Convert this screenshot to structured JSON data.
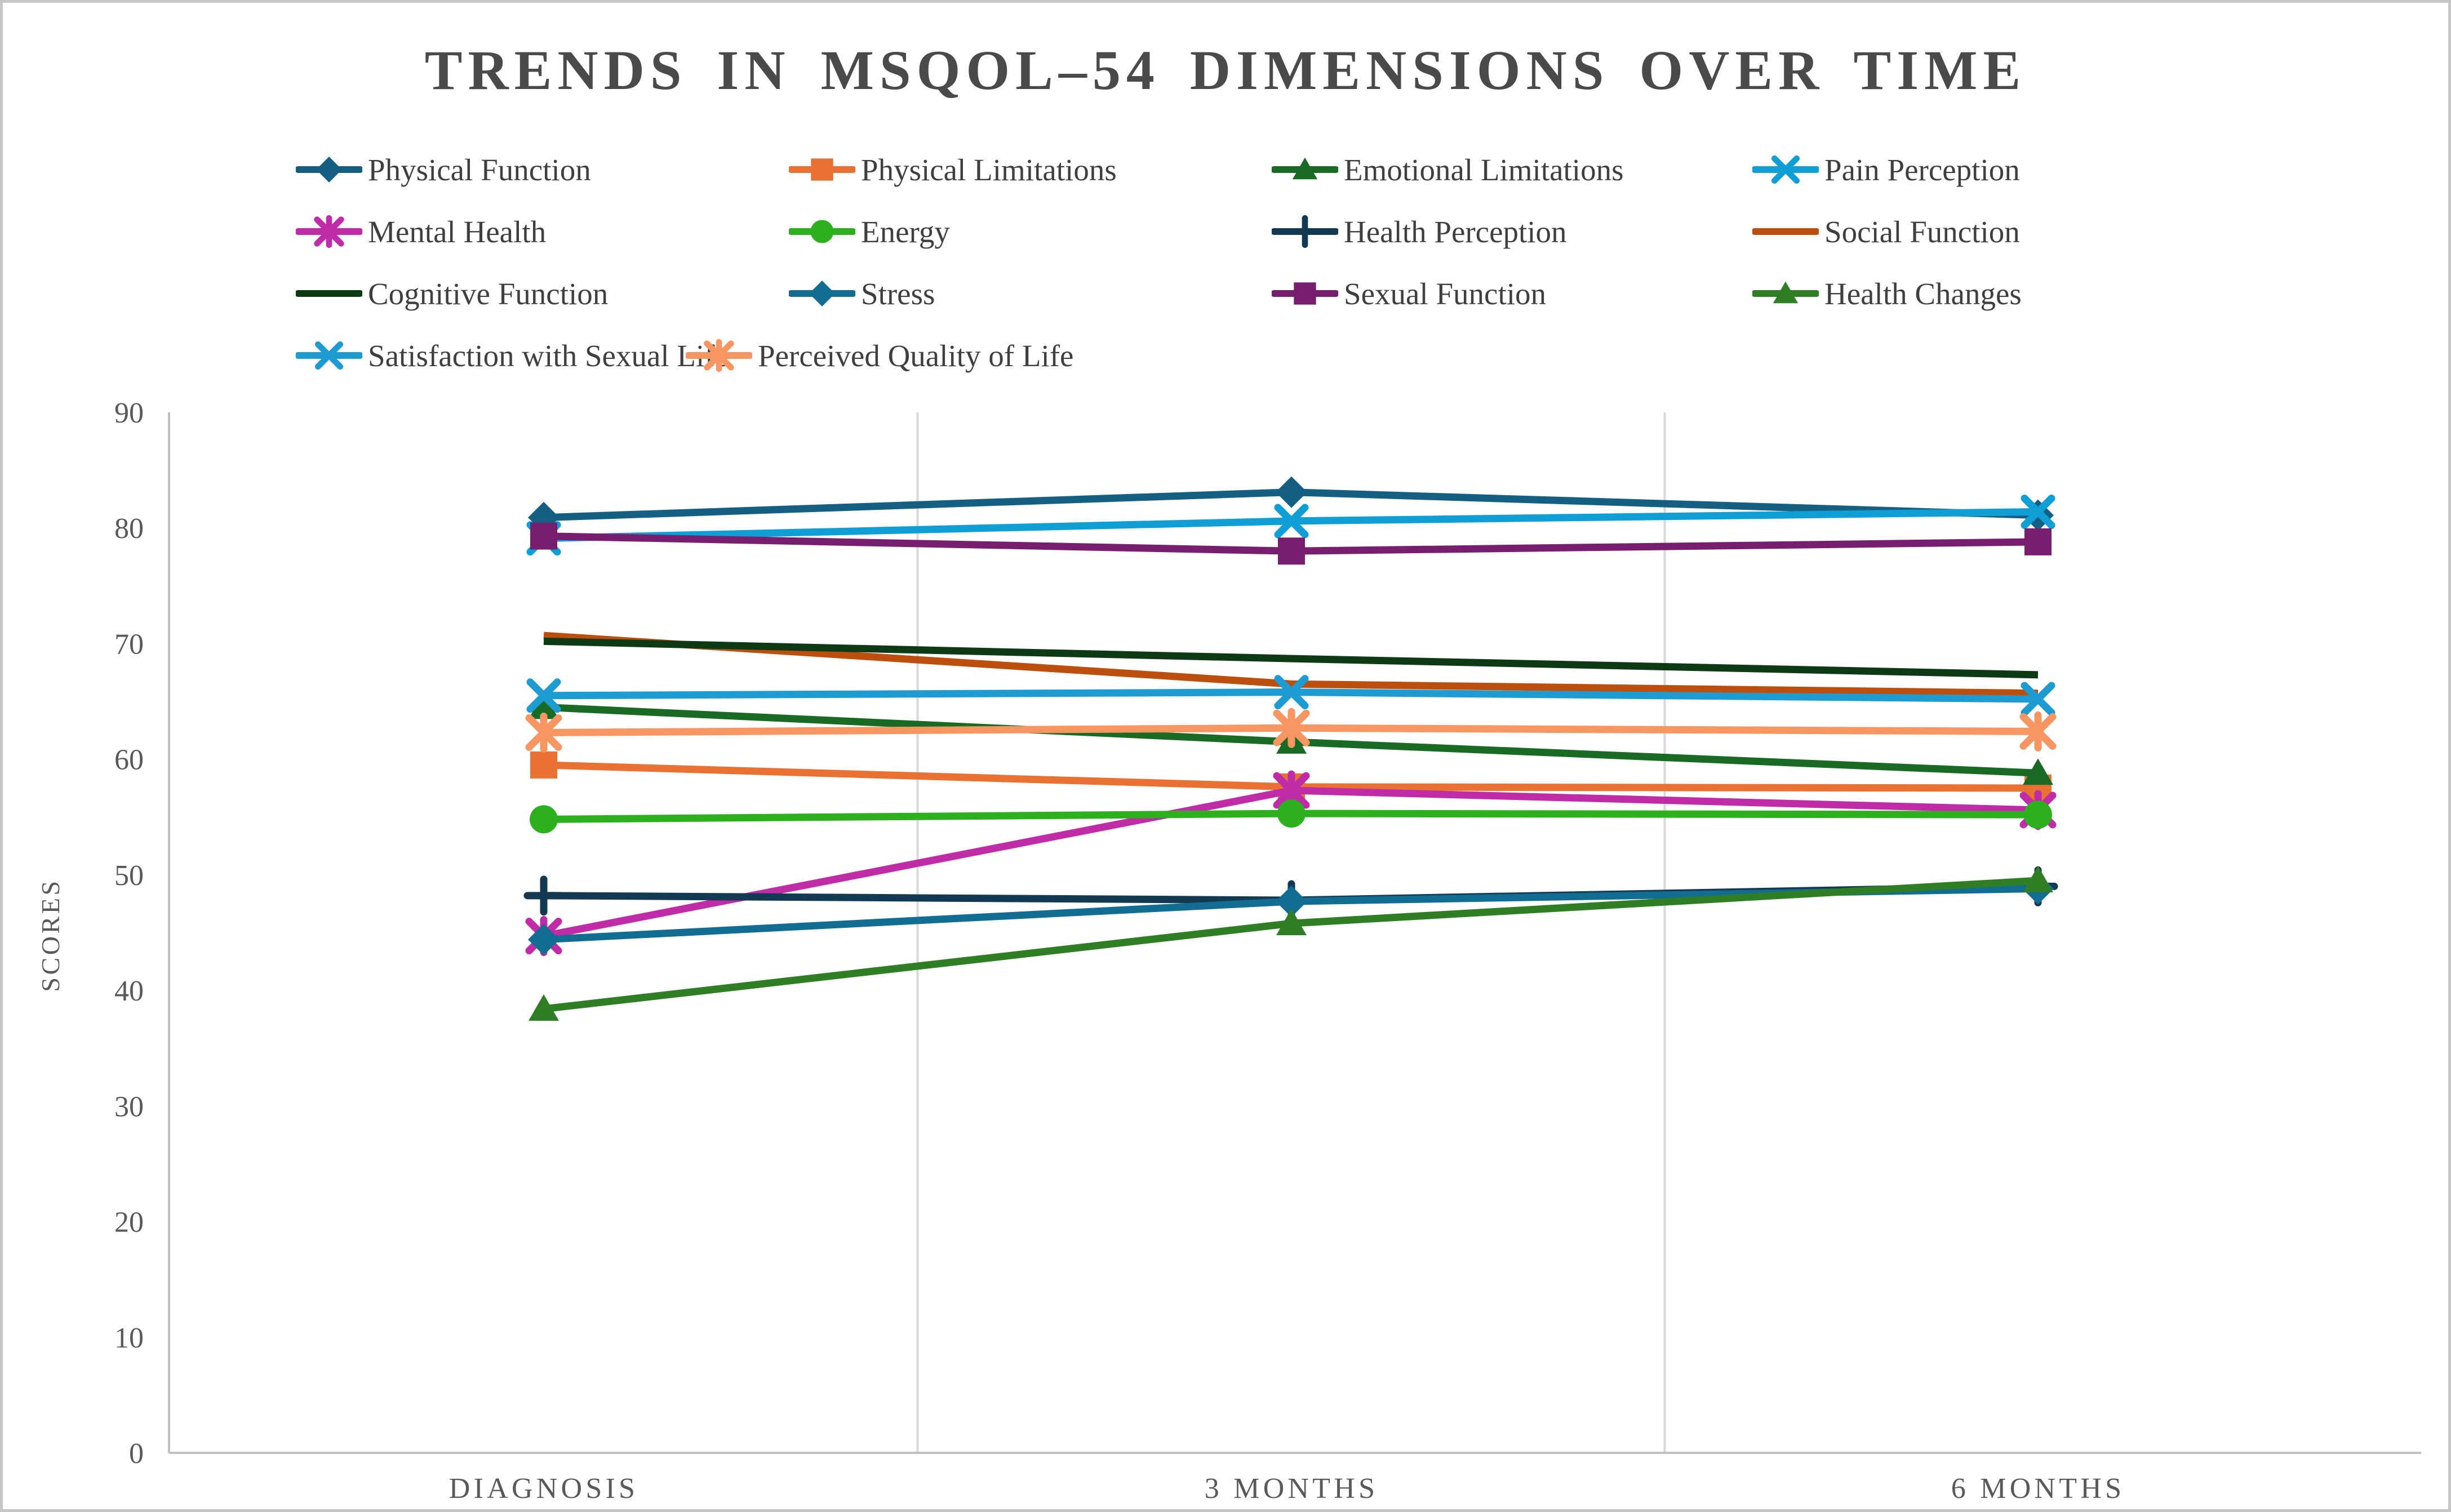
{
  "title": "TRENDS IN MSQOL–54 DIMENSIONS OVER TIME",
  "chart_data": {
    "type": "line",
    "categories": [
      "DIAGNOSIS",
      "3 MONTHS",
      "6 MONTHS"
    ],
    "ylabel": "SCORES",
    "ylim": [
      0,
      90
    ],
    "ytick_step": 10,
    "yticks": [
      0,
      10,
      20,
      30,
      40,
      50,
      60,
      70,
      80,
      90
    ],
    "grid": "vertical-category-separators",
    "legend_position": "top",
    "series": [
      {
        "name": "Physical Function",
        "color": "#156082",
        "marker": "diamond",
        "values": [
          80.9,
          83.1,
          81.1
        ]
      },
      {
        "name": "Physical Limitations",
        "color": "#E97132",
        "marker": "square",
        "values": [
          59.5,
          57.6,
          57.5
        ]
      },
      {
        "name": "Emotional Limitations",
        "color": "#196B24",
        "marker": "triangle",
        "values": [
          64.5,
          61.5,
          58.8
        ]
      },
      {
        "name": "Pain Perception",
        "color": "#0F9ED5",
        "marker": "x",
        "values": [
          79.1,
          80.6,
          81.4
        ]
      },
      {
        "name": "Mental Health",
        "color": "#C02BA8",
        "marker": "asterisk",
        "values": [
          44.7,
          57.3,
          55.6
        ]
      },
      {
        "name": "Energy",
        "color": "#2DB01E",
        "marker": "circle",
        "values": [
          54.8,
          55.3,
          55.2
        ]
      },
      {
        "name": "Health Perception",
        "color": "#123A52",
        "marker": "plus",
        "values": [
          48.2,
          47.8,
          49.0
        ]
      },
      {
        "name": "Social Function",
        "color": "#BC4F0D",
        "marker": "none",
        "values": [
          70.7,
          66.5,
          65.7
        ]
      },
      {
        "name": "Cognitive Function",
        "color": "#0D3A14",
        "marker": "none",
        "values": [
          70.2,
          68.7,
          67.3
        ]
      },
      {
        "name": "Stress",
        "color": "#136D93",
        "marker": "diamond",
        "values": [
          44.4,
          47.7,
          48.8
        ]
      },
      {
        "name": "Sexual Function",
        "color": "#771F6E",
        "marker": "square",
        "values": [
          79.3,
          78.0,
          78.8
        ]
      },
      {
        "name": "Health Changes",
        "color": "#2F7D25",
        "marker": "triangle",
        "values": [
          38.4,
          45.8,
          49.5
        ]
      },
      {
        "name": "Satisfaction with Sexual Life",
        "color": "#1E9BD0",
        "marker": "x",
        "values": [
          65.5,
          65.8,
          65.2
        ]
      },
      {
        "name": "Perceived Quality of Life",
        "color": "#F79661",
        "marker": "asterisk",
        "values": [
          62.3,
          62.7,
          62.4
        ]
      }
    ]
  }
}
